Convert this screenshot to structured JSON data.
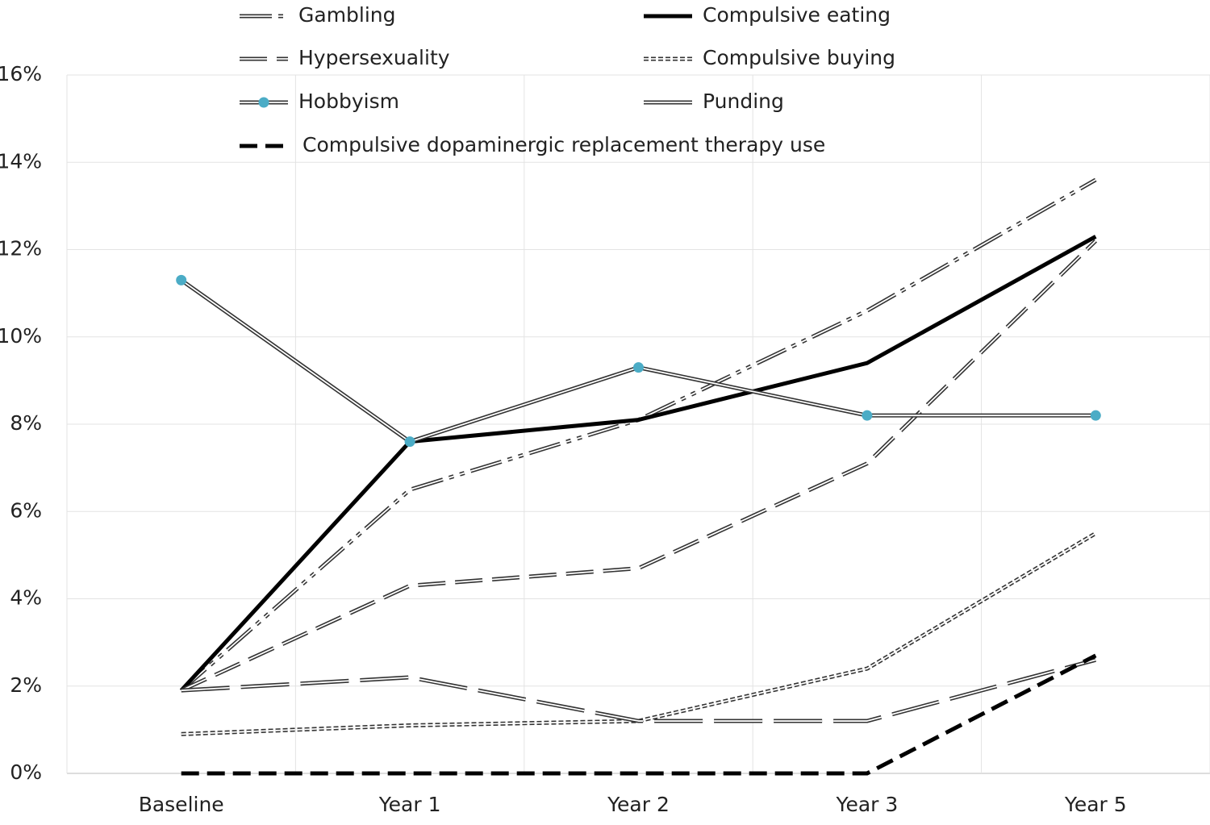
{
  "chart_data": {
    "type": "line",
    "categories": [
      "Baseline",
      "Year 1",
      "Year 2",
      "Year 3",
      "Year 5"
    ],
    "series": [
      {
        "name": "Gambling",
        "color": "#333333",
        "values": [
          1.9,
          6.5,
          8.1,
          10.6,
          13.6
        ]
      },
      {
        "name": "Compulsive eating",
        "color": "#000000",
        "values": [
          1.9,
          7.6,
          8.1,
          9.4,
          12.3
        ]
      },
      {
        "name": "Hypersexuality",
        "color": "#333333",
        "values": [
          1.9,
          4.3,
          4.7,
          7.1,
          12.2
        ]
      },
      {
        "name": "Compulsive buying",
        "color": "#333333",
        "values": [
          0.9,
          1.1,
          1.2,
          2.4,
          5.5
        ]
      },
      {
        "name": "Hobbyism",
        "color": "#333333",
        "marker_color": "#4bacc6",
        "values": [
          11.3,
          7.6,
          9.3,
          8.2,
          8.2
        ]
      },
      {
        "name": "Punding",
        "color": "#333333",
        "values": [
          1.9,
          2.2,
          1.2,
          1.2,
          2.6
        ]
      },
      {
        "name": "Compulsive dopaminergic replacement therapy use",
        "color": "#000000",
        "values": [
          0,
          0,
          0,
          0,
          2.7
        ]
      }
    ],
    "ylim": [
      0,
      16
    ],
    "yticks": [
      {
        "value": 0,
        "label": "0%"
      },
      {
        "value": 2,
        "label": "2%"
      },
      {
        "value": 4,
        "label": "4%"
      },
      {
        "value": 6,
        "label": "6%"
      },
      {
        "value": 8,
        "label": "8%"
      },
      {
        "value": 10,
        "label": "10%"
      },
      {
        "value": 12,
        "label": "12%"
      },
      {
        "value": 14,
        "label": "14%"
      },
      {
        "value": 16,
        "label": "16%"
      }
    ],
    "grid": true
  }
}
